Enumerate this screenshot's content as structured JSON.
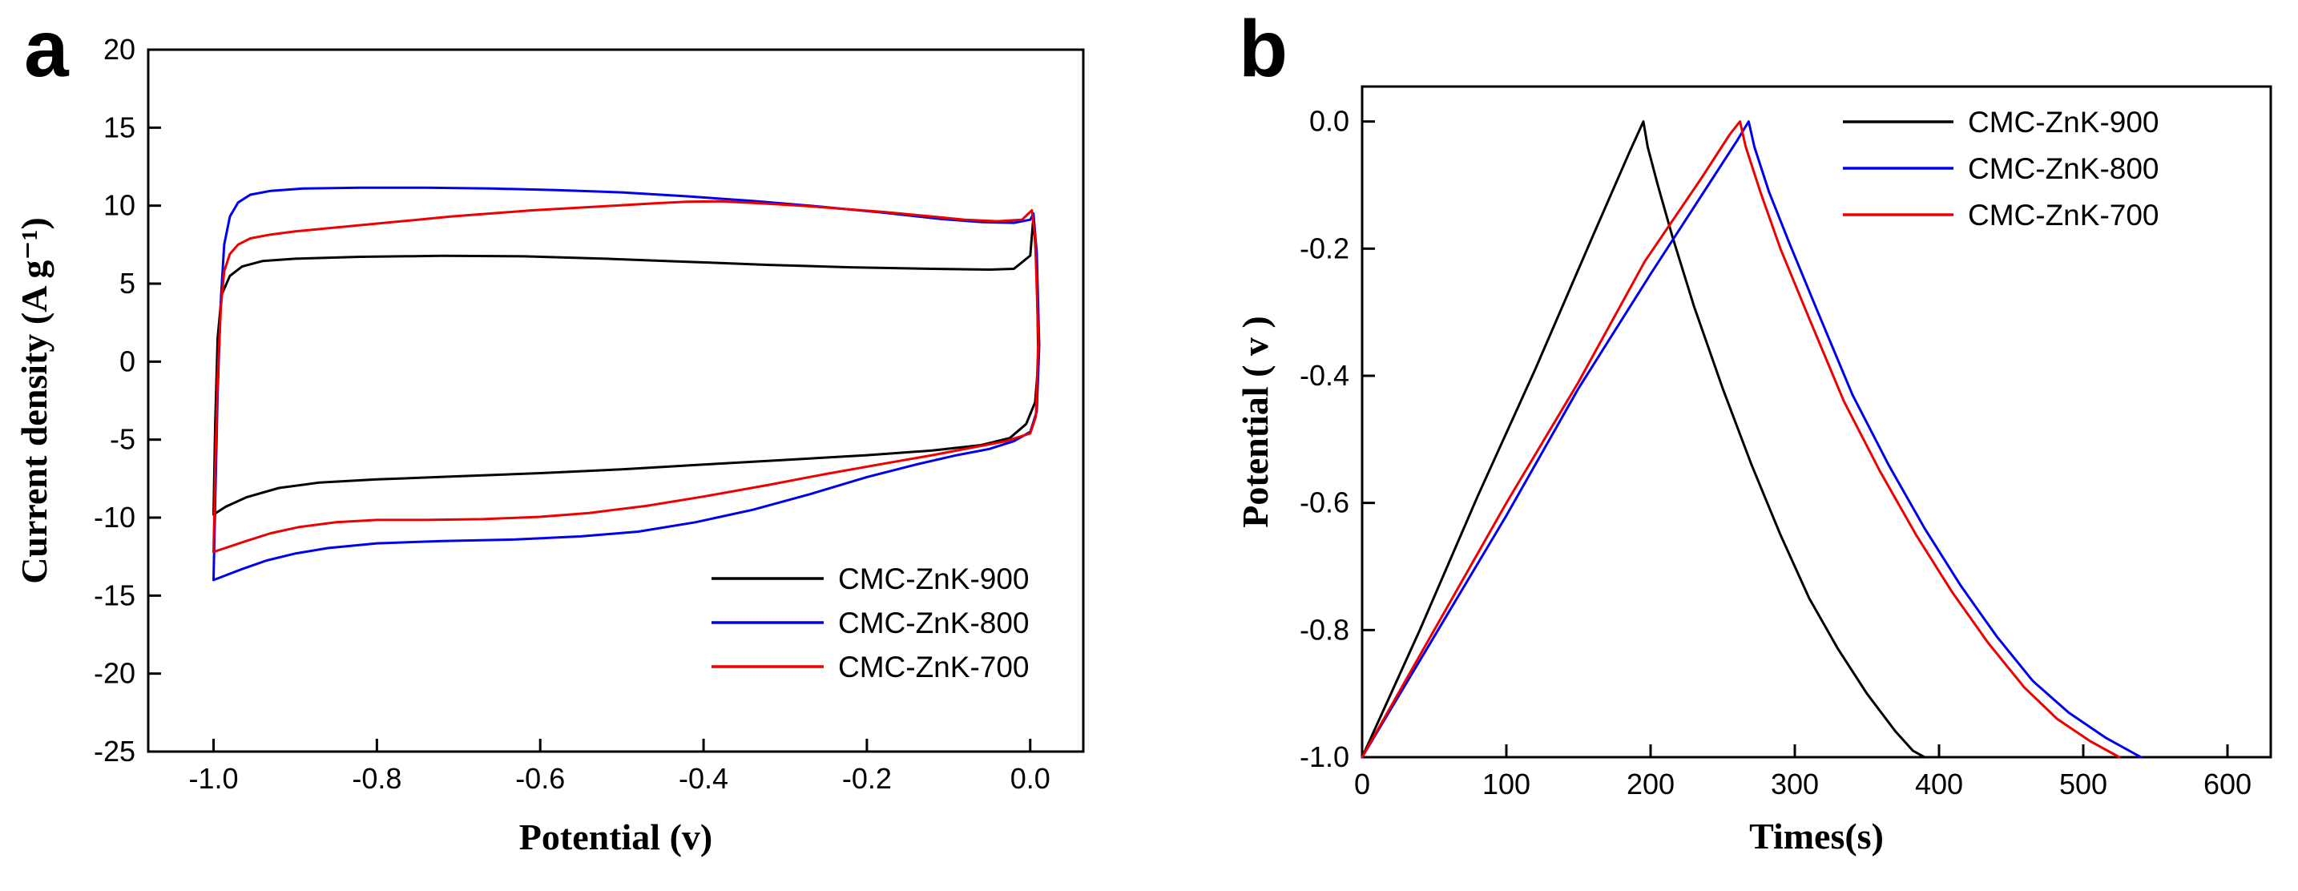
{
  "figure": {
    "background": "#ffffff",
    "panels": [
      {
        "label": "a",
        "description": "cyclic voltammetry curves"
      },
      {
        "label": "b",
        "description": "galvanostatic charge-discharge curves"
      }
    ]
  },
  "colors": {
    "black": "#000000",
    "blue": "#0000ee",
    "red": "#ee0000"
  },
  "chart_data": [
    {
      "type": "line",
      "panel_label": "a",
      "title": "",
      "xlabel": "Potential (v)",
      "ylabel": "Current density (A g⁻¹)",
      "xlim": [
        -1.08,
        0.065
      ],
      "ylim": [
        -25,
        20
      ],
      "xtick_values": [
        -1.0,
        -0.8,
        -0.6,
        -0.4,
        -0.2,
        0.0
      ],
      "xtick_labels": [
        "-1.0",
        "-0.8",
        "-0.6",
        "-0.4",
        "-0.2",
        "0.0"
      ],
      "ytick_values": [
        -25,
        -20,
        -15,
        -10,
        -5,
        0,
        5,
        10,
        15,
        20
      ],
      "ytick_labels": [
        "-25",
        "-20",
        "-15",
        "-10",
        "-5",
        "0",
        "5",
        "10",
        "15",
        "20"
      ],
      "grid": false,
      "legend_position": "bottom-right",
      "series": [
        {
          "name": "CMC-ZnK-900",
          "color": "#000000",
          "points": [
            [
              -1.0,
              -9.8
            ],
            [
              -0.998,
              -4
            ],
            [
              -0.995,
              1.5
            ],
            [
              -0.99,
              4.3
            ],
            [
              -0.98,
              5.5
            ],
            [
              -0.965,
              6.1
            ],
            [
              -0.94,
              6.45
            ],
            [
              -0.9,
              6.6
            ],
            [
              -0.82,
              6.72
            ],
            [
              -0.72,
              6.78
            ],
            [
              -0.62,
              6.75
            ],
            [
              -0.52,
              6.6
            ],
            [
              -0.42,
              6.4
            ],
            [
              -0.32,
              6.2
            ],
            [
              -0.22,
              6.05
            ],
            [
              -0.12,
              5.95
            ],
            [
              -0.05,
              5.9
            ],
            [
              -0.02,
              5.95
            ],
            [
              0.0,
              6.8
            ],
            [
              0.004,
              9.3
            ],
            [
              0.008,
              6
            ],
            [
              0.01,
              0
            ],
            [
              0.006,
              -2.6
            ],
            [
              -0.005,
              -4.0
            ],
            [
              -0.025,
              -4.9
            ],
            [
              -0.06,
              -5.35
            ],
            [
              -0.12,
              -5.7
            ],
            [
              -0.2,
              -6.0
            ],
            [
              -0.3,
              -6.3
            ],
            [
              -0.4,
              -6.6
            ],
            [
              -0.5,
              -6.9
            ],
            [
              -0.6,
              -7.15
            ],
            [
              -0.7,
              -7.35
            ],
            [
              -0.8,
              -7.55
            ],
            [
              -0.87,
              -7.75
            ],
            [
              -0.92,
              -8.1
            ],
            [
              -0.96,
              -8.7
            ],
            [
              -0.985,
              -9.3
            ],
            [
              -1.0,
              -9.8
            ]
          ]
        },
        {
          "name": "CMC-ZnK-800",
          "color": "#0000ee",
          "points": [
            [
              -1.0,
              -14.0
            ],
            [
              -0.998,
              -9
            ],
            [
              -0.995,
              -2
            ],
            [
              -0.991,
              4
            ],
            [
              -0.987,
              7.5
            ],
            [
              -0.98,
              9.3
            ],
            [
              -0.97,
              10.2
            ],
            [
              -0.955,
              10.7
            ],
            [
              -0.93,
              10.95
            ],
            [
              -0.89,
              11.1
            ],
            [
              -0.82,
              11.15
            ],
            [
              -0.74,
              11.15
            ],
            [
              -0.66,
              11.1
            ],
            [
              -0.58,
              11.0
            ],
            [
              -0.5,
              10.85
            ],
            [
              -0.42,
              10.6
            ],
            [
              -0.34,
              10.3
            ],
            [
              -0.26,
              9.95
            ],
            [
              -0.18,
              9.55
            ],
            [
              -0.11,
              9.15
            ],
            [
              -0.06,
              8.95
            ],
            [
              -0.02,
              8.9
            ],
            [
              0.0,
              9.1
            ],
            [
              0.004,
              9.5
            ],
            [
              0.008,
              7
            ],
            [
              0.011,
              1
            ],
            [
              0.008,
              -3.2
            ],
            [
              0.0,
              -4.5
            ],
            [
              -0.02,
              -5.1
            ],
            [
              -0.05,
              -5.6
            ],
            [
              -0.09,
              -6.0
            ],
            [
              -0.14,
              -6.6
            ],
            [
              -0.2,
              -7.4
            ],
            [
              -0.27,
              -8.5
            ],
            [
              -0.34,
              -9.5
            ],
            [
              -0.41,
              -10.3
            ],
            [
              -0.48,
              -10.9
            ],
            [
              -0.55,
              -11.2
            ],
            [
              -0.63,
              -11.4
            ],
            [
              -0.72,
              -11.5
            ],
            [
              -0.8,
              -11.65
            ],
            [
              -0.86,
              -11.95
            ],
            [
              -0.9,
              -12.3
            ],
            [
              -0.935,
              -12.75
            ],
            [
              -0.965,
              -13.3
            ],
            [
              -0.985,
              -13.7
            ],
            [
              -1.0,
              -14.0
            ]
          ]
        },
        {
          "name": "CMC-ZnK-700",
          "color": "#ee0000",
          "points": [
            [
              -1.0,
              -12.2
            ],
            [
              -0.998,
              -7
            ],
            [
              -0.995,
              -1
            ],
            [
              -0.991,
              3.5
            ],
            [
              -0.987,
              5.8
            ],
            [
              -0.98,
              6.9
            ],
            [
              -0.97,
              7.5
            ],
            [
              -0.955,
              7.9
            ],
            [
              -0.93,
              8.15
            ],
            [
              -0.9,
              8.35
            ],
            [
              -0.86,
              8.55
            ],
            [
              -0.81,
              8.8
            ],
            [
              -0.76,
              9.05
            ],
            [
              -0.71,
              9.3
            ],
            [
              -0.66,
              9.5
            ],
            [
              -0.61,
              9.7
            ],
            [
              -0.56,
              9.85
            ],
            [
              -0.51,
              10.0
            ],
            [
              -0.46,
              10.15
            ],
            [
              -0.42,
              10.25
            ],
            [
              -0.38,
              10.28
            ],
            [
              -0.33,
              10.15
            ],
            [
              -0.28,
              10.0
            ],
            [
              -0.23,
              9.8
            ],
            [
              -0.18,
              9.6
            ],
            [
              -0.13,
              9.35
            ],
            [
              -0.08,
              9.1
            ],
            [
              -0.04,
              9.0
            ],
            [
              -0.01,
              9.1
            ],
            [
              0.002,
              9.7
            ],
            [
              0.006,
              8
            ],
            [
              0.01,
              1.5
            ],
            [
              0.007,
              -3.5
            ],
            [
              0.0,
              -4.6
            ],
            [
              -0.03,
              -5.1
            ],
            [
              -0.07,
              -5.5
            ],
            [
              -0.12,
              -6.0
            ],
            [
              -0.18,
              -6.55
            ],
            [
              -0.25,
              -7.2
            ],
            [
              -0.32,
              -7.9
            ],
            [
              -0.4,
              -8.65
            ],
            [
              -0.47,
              -9.25
            ],
            [
              -0.54,
              -9.7
            ],
            [
              -0.6,
              -9.95
            ],
            [
              -0.67,
              -10.1
            ],
            [
              -0.74,
              -10.15
            ],
            [
              -0.8,
              -10.15
            ],
            [
              -0.85,
              -10.3
            ],
            [
              -0.895,
              -10.6
            ],
            [
              -0.93,
              -11.0
            ],
            [
              -0.96,
              -11.5
            ],
            [
              -0.983,
              -11.9
            ],
            [
              -1.0,
              -12.2
            ]
          ]
        }
      ]
    },
    {
      "type": "line",
      "panel_label": "b",
      "title": "",
      "xlabel": "Times(s)",
      "ylabel": "Potential ( v )",
      "xlim": [
        0,
        630
      ],
      "ylim": [
        -1.0,
        0.055
      ],
      "xtick_values": [
        0,
        100,
        200,
        300,
        400,
        500,
        600
      ],
      "xtick_labels": [
        "0",
        "100",
        "200",
        "300",
        "400",
        "500",
        "600"
      ],
      "ytick_values": [
        0.0,
        -0.2,
        -0.4,
        -0.6,
        -0.8,
        -1.0
      ],
      "ytick_labels": [
        "0.0",
        "-0.2",
        "-0.4",
        "-0.6",
        "-0.8",
        "-1.0"
      ],
      "grid": false,
      "legend_position": "top-right",
      "series": [
        {
          "name": "CMC-ZnK-900",
          "color": "#000000",
          "points": [
            [
              0,
              -1.0
            ],
            [
              40,
              -0.8
            ],
            [
              80,
              -0.59
            ],
            [
              120,
              -0.39
            ],
            [
              160,
              -0.18
            ],
            [
              185,
              -0.05
            ],
            [
              195,
              0.0
            ],
            [
              198,
              -0.04
            ],
            [
              205,
              -0.1
            ],
            [
              215,
              -0.18
            ],
            [
              230,
              -0.29
            ],
            [
              250,
              -0.42
            ],
            [
              270,
              -0.54
            ],
            [
              290,
              -0.65
            ],
            [
              310,
              -0.75
            ],
            [
              330,
              -0.83
            ],
            [
              350,
              -0.9
            ],
            [
              370,
              -0.96
            ],
            [
              382,
              -0.99
            ],
            [
              390,
              -1.0
            ]
          ]
        },
        {
          "name": "CMC-ZnK-800",
          "color": "#0000ee",
          "points": [
            [
              0,
              -1.0
            ],
            [
              50,
              -0.81
            ],
            [
              100,
              -0.62
            ],
            [
              150,
              -0.42
            ],
            [
              200,
              -0.24
            ],
            [
              240,
              -0.1
            ],
            [
              260,
              -0.03
            ],
            [
              268,
              0.0
            ],
            [
              272,
              -0.04
            ],
            [
              282,
              -0.11
            ],
            [
              296,
              -0.19
            ],
            [
              316,
              -0.3
            ],
            [
              340,
              -0.43
            ],
            [
              365,
              -0.54
            ],
            [
              390,
              -0.64
            ],
            [
              415,
              -0.73
            ],
            [
              440,
              -0.81
            ],
            [
              465,
              -0.88
            ],
            [
              490,
              -0.93
            ],
            [
              516,
              -0.97
            ],
            [
              540,
              -1.0
            ]
          ]
        },
        {
          "name": "CMC-ZnK-700",
          "color": "#ee0000",
          "points": [
            [
              0,
              -1.0
            ],
            [
              50,
              -0.8
            ],
            [
              100,
              -0.6
            ],
            [
              150,
              -0.41
            ],
            [
              196,
              -0.22
            ],
            [
              235,
              -0.09
            ],
            [
              255,
              -0.02
            ],
            [
              262,
              0.0
            ],
            [
              266,
              -0.04
            ],
            [
              276,
              -0.11
            ],
            [
              290,
              -0.2
            ],
            [
              310,
              -0.31
            ],
            [
              334,
              -0.44
            ],
            [
              359,
              -0.55
            ],
            [
              384,
              -0.65
            ],
            [
              409,
              -0.74
            ],
            [
              434,
              -0.82
            ],
            [
              459,
              -0.89
            ],
            [
              482,
              -0.94
            ],
            [
              505,
              -0.975
            ],
            [
              525,
              -1.0
            ]
          ]
        }
      ]
    }
  ]
}
